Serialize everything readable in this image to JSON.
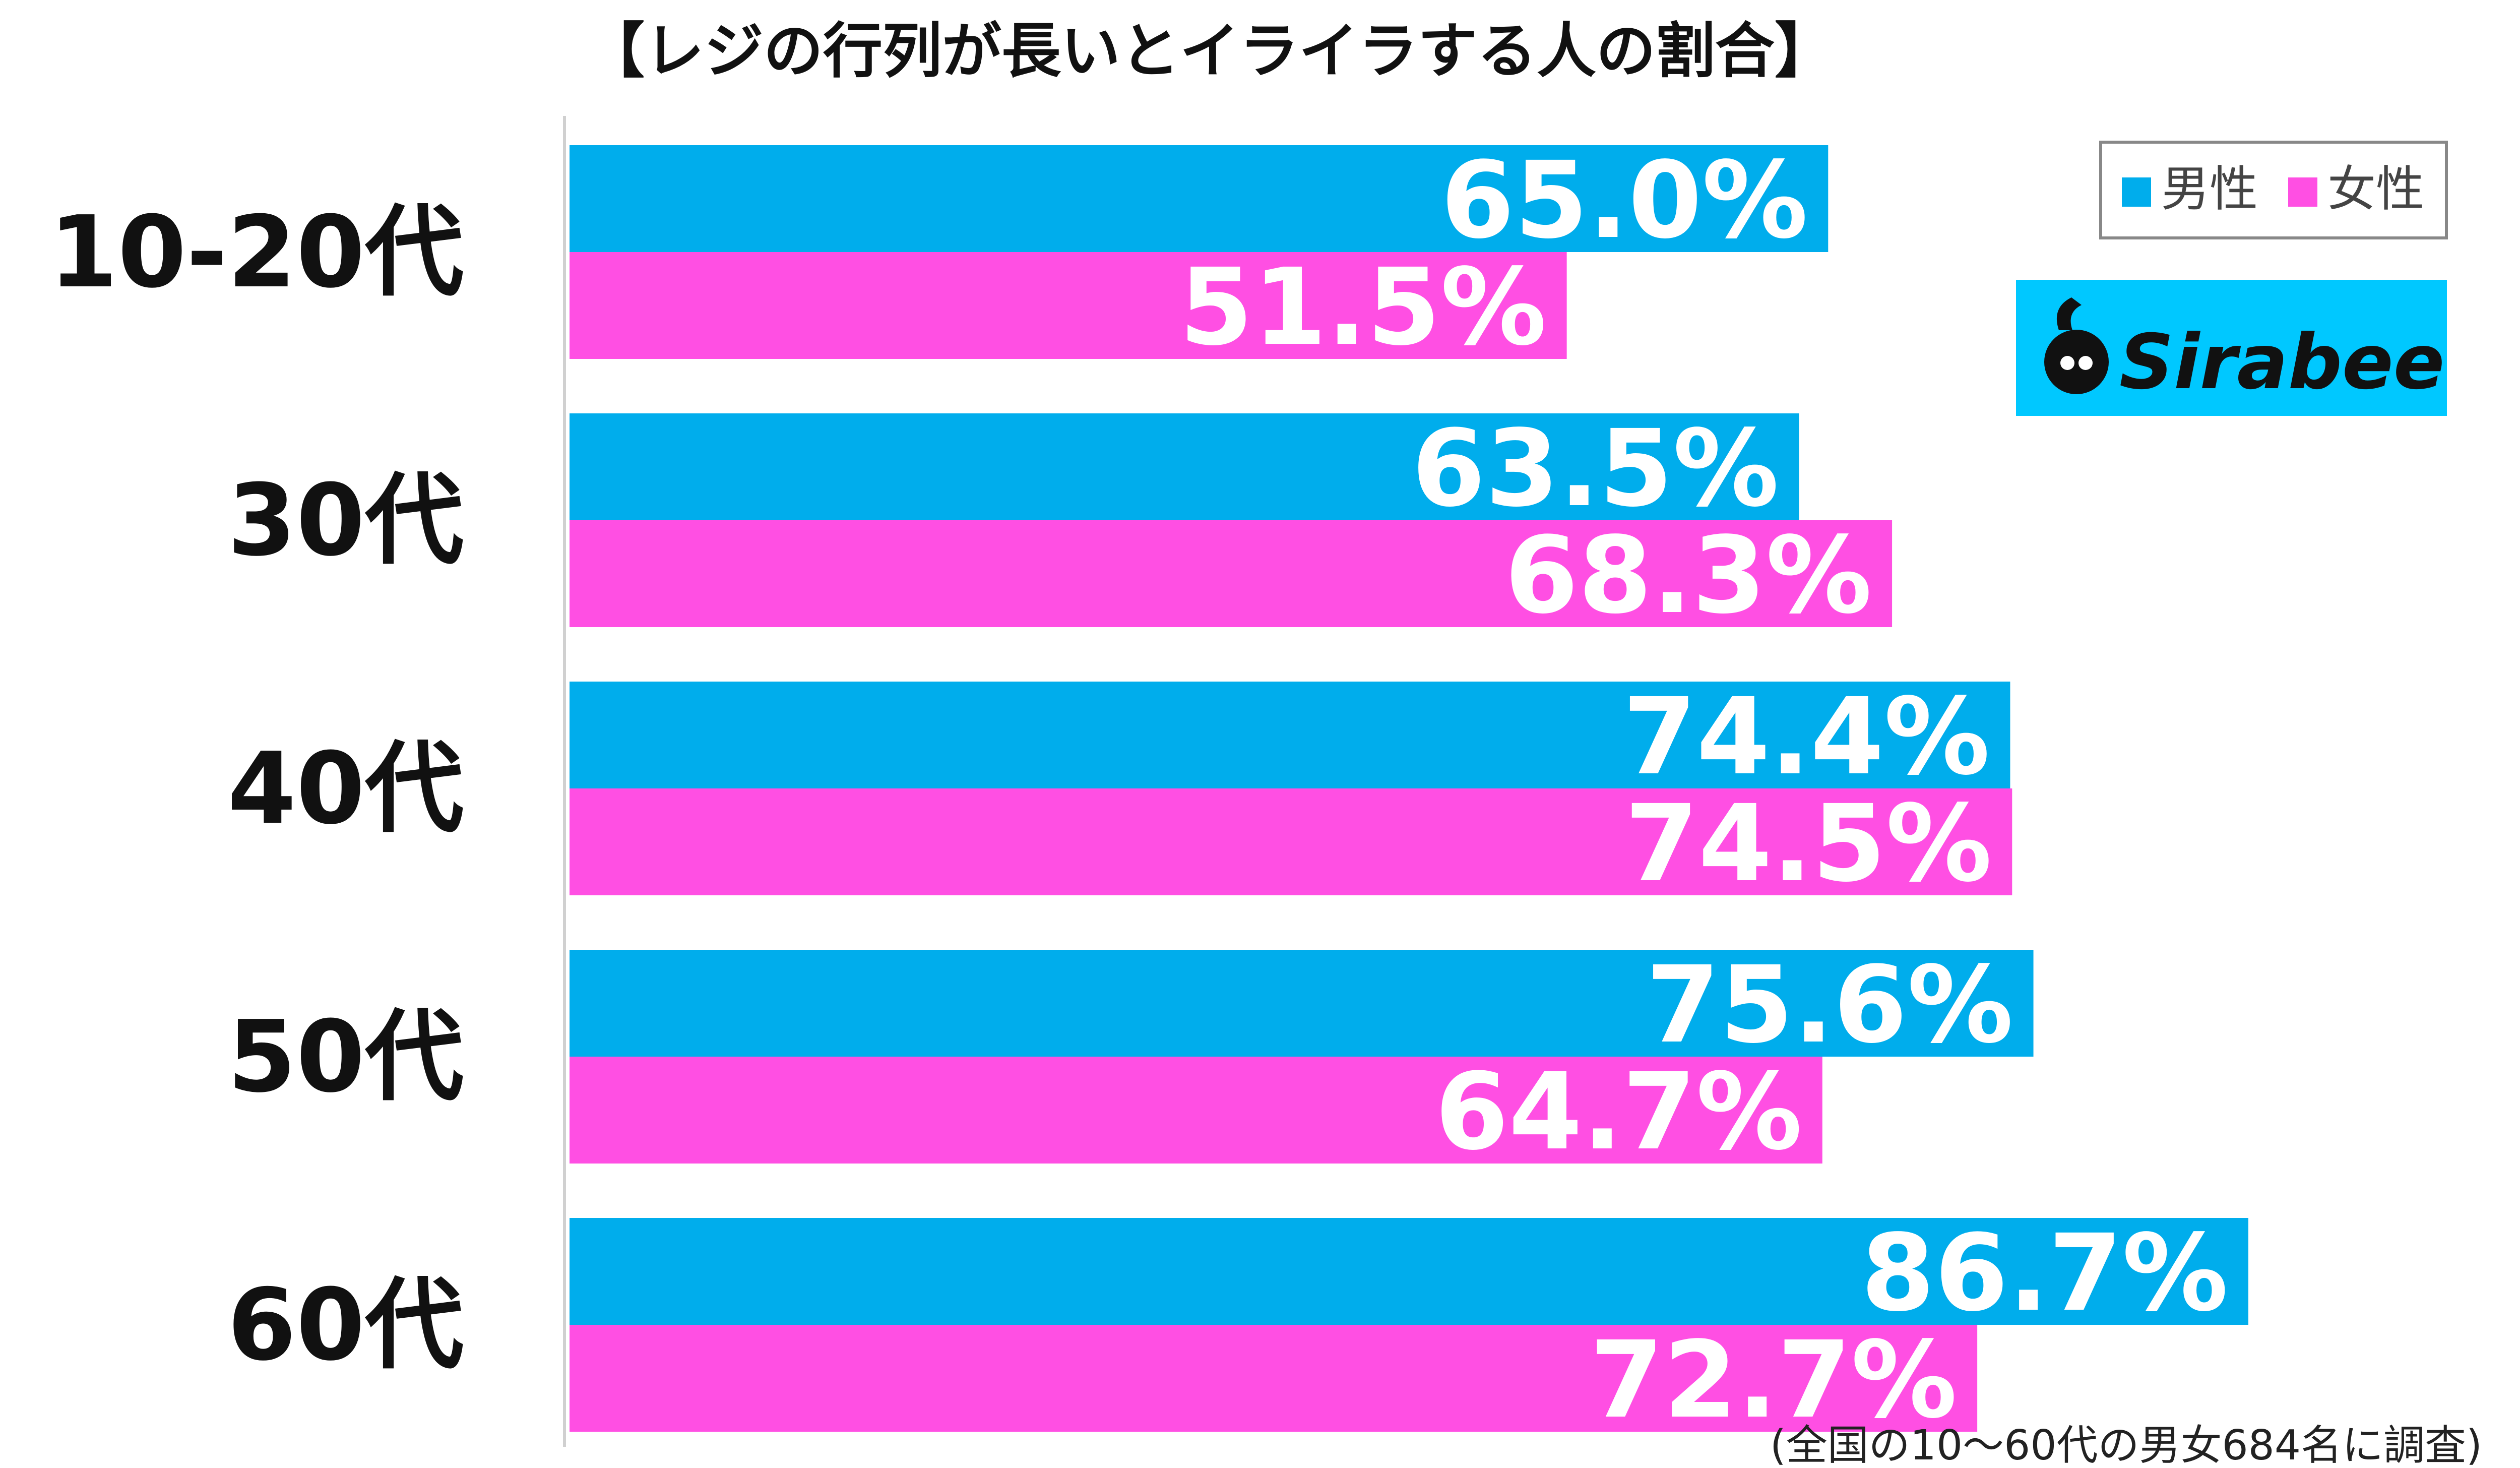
{
  "chart_data": {
    "type": "bar",
    "orientation": "horizontal",
    "title": "【レジの行列が長いとイライラする人の割合】",
    "categories": [
      "10-20代",
      "30代",
      "40代",
      "50代",
      "60代"
    ],
    "series": [
      {
        "name": "男性",
        "color": "#00adec",
        "values": [
          65.0,
          63.5,
          74.4,
          75.6,
          86.7
        ]
      },
      {
        "name": "女性",
        "color": "#ff4fe3",
        "values": [
          51.5,
          68.3,
          74.5,
          64.7,
          72.7
        ]
      }
    ],
    "value_format": "%",
    "xlim": [
      0,
      100
    ],
    "grid": false,
    "legend_position": "top-right"
  },
  "logo": {
    "text": "Sirabee",
    "background": "#00c8ff"
  },
  "footnote": "(全国の10〜60代の男女684名に調査)",
  "colors": {
    "axis_line": "#d0d0d0",
    "legend_border": "#888888"
  }
}
